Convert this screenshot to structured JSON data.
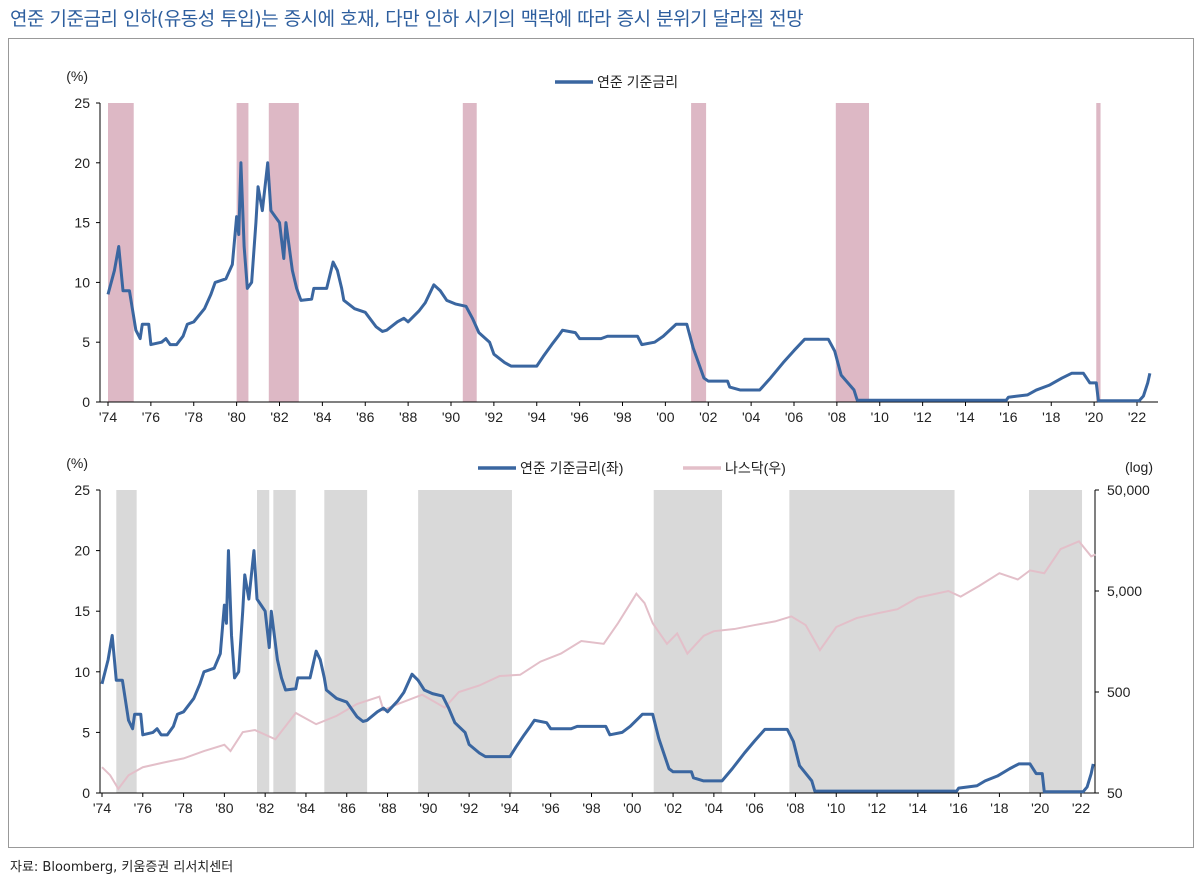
{
  "title": "연준 기준금리 인하(유동성 투입)는 증시에 호재, 다만 인하 시기의 맥락에 따라 증시 분위기 달라질 전망",
  "source": "자료: Bloomberg, 키움증권 리서치센터",
  "colors": {
    "rate": "#3a66a0",
    "nasdaq": "#e3bfc9",
    "recession": "#ddb8c5",
    "cut_period": "#d9d9d9"
  },
  "chart_data": [
    {
      "type": "line",
      "ylabel": "(%)",
      "ylim": [
        0,
        25
      ],
      "yticks": [
        "0",
        "5",
        "10",
        "15",
        "20",
        "25"
      ],
      "xticks": [
        "'74",
        "'76",
        "'78",
        "'80",
        "'82",
        "'84",
        "'86",
        "'88",
        "'90",
        "'92",
        "'94",
        "'96",
        "'98",
        "'00",
        "'02",
        "'04",
        "'06",
        "'08",
        "'10",
        "'12",
        "'14",
        "'16",
        "'18",
        "'20",
        "'22"
      ],
      "legend": "top-center",
      "series": [
        {
          "name": "연준 기준금리",
          "ref": "rate"
        }
      ],
      "shaded_periods": [
        [
          1974.0,
          1975.2
        ],
        [
          1980.0,
          1980.55
        ],
        [
          1981.5,
          1982.9
        ],
        [
          1990.55,
          1991.2
        ],
        [
          2001.2,
          2001.9
        ],
        [
          2007.95,
          2009.5
        ],
        [
          2020.1,
          2020.3
        ]
      ]
    },
    {
      "type": "line",
      "ylabel": "(%)",
      "ylabel_right": "(log)",
      "ylim": [
        0,
        25
      ],
      "ylim_right": [
        50,
        50000
      ],
      "yscale_right": "log",
      "yticks": [
        "0",
        "5",
        "10",
        "15",
        "20",
        "25"
      ],
      "yticks_right": [
        "50",
        "500",
        "5,000",
        "50,000"
      ],
      "xticks": [
        "'74",
        "'76",
        "'78",
        "'80",
        "'82",
        "'84",
        "'86",
        "'88",
        "'90",
        "'92",
        "'94",
        "'96",
        "'98",
        "'00",
        "'02",
        "'04",
        "'06",
        "'08",
        "'10",
        "'12",
        "'14",
        "'16",
        "'18",
        "'20",
        "'22"
      ],
      "legend": "top-center",
      "series": [
        {
          "name": "연준 기준금리(좌)",
          "ref": "rate"
        },
        {
          "name": "나스닥(우)",
          "ref": "nasdaq"
        }
      ],
      "shaded_periods": [
        [
          1974.7,
          1975.7
        ],
        [
          1981.6,
          1982.2
        ],
        [
          1982.4,
          1983.5
        ],
        [
          1984.9,
          1987.0
        ],
        [
          1989.5,
          1994.1
        ],
        [
          2001.05,
          2004.4
        ],
        [
          2007.7,
          2015.8
        ],
        [
          2019.45,
          2022.05
        ]
      ]
    }
  ],
  "rate": [
    [
      1974.0,
      9
    ],
    [
      1974.3,
      11
    ],
    [
      1974.5,
      13
    ],
    [
      1974.7,
      9.3
    ],
    [
      1975.0,
      9.3
    ],
    [
      1975.3,
      6
    ],
    [
      1975.5,
      5.3
    ],
    [
      1975.6,
      6.5
    ],
    [
      1975.9,
      6.5
    ],
    [
      1976.0,
      4.8
    ],
    [
      1976.5,
      5
    ],
    [
      1976.7,
      5.3
    ],
    [
      1976.9,
      4.8
    ],
    [
      1977.2,
      4.8
    ],
    [
      1977.5,
      5.5
    ],
    [
      1977.7,
      6.5
    ],
    [
      1978.0,
      6.7
    ],
    [
      1978.5,
      7.8
    ],
    [
      1978.8,
      9
    ],
    [
      1979.0,
      10
    ],
    [
      1979.5,
      10.3
    ],
    [
      1979.8,
      11.5
    ],
    [
      1980.0,
      15.5
    ],
    [
      1980.1,
      14
    ],
    [
      1980.2,
      20
    ],
    [
      1980.35,
      13
    ],
    [
      1980.5,
      9.5
    ],
    [
      1980.7,
      10
    ],
    [
      1980.9,
      15
    ],
    [
      1981.0,
      18
    ],
    [
      1981.2,
      16
    ],
    [
      1981.45,
      20
    ],
    [
      1981.6,
      16
    ],
    [
      1981.8,
      15.5
    ],
    [
      1982.0,
      15
    ],
    [
      1982.2,
      12
    ],
    [
      1982.3,
      15
    ],
    [
      1982.6,
      11
    ],
    [
      1982.8,
      9.5
    ],
    [
      1983.0,
      8.5
    ],
    [
      1983.5,
      8.6
    ],
    [
      1983.6,
      9.5
    ],
    [
      1984.2,
      9.5
    ],
    [
      1984.5,
      11.7
    ],
    [
      1984.7,
      11
    ],
    [
      1984.9,
      9.5
    ],
    [
      1985.0,
      8.5
    ],
    [
      1985.5,
      7.8
    ],
    [
      1986.0,
      7.5
    ],
    [
      1986.5,
      6.3
    ],
    [
      1986.8,
      5.9
    ],
    [
      1987.0,
      6
    ],
    [
      1987.5,
      6.7
    ],
    [
      1987.8,
      7
    ],
    [
      1988.0,
      6.7
    ],
    [
      1988.5,
      7.6
    ],
    [
      1988.8,
      8.3
    ],
    [
      1989.2,
      9.8
    ],
    [
      1989.5,
      9.3
    ],
    [
      1989.8,
      8.5
    ],
    [
      1990.2,
      8.2
    ],
    [
      1990.7,
      8
    ],
    [
      1991.0,
      7
    ],
    [
      1991.3,
      5.8
    ],
    [
      1991.8,
      5
    ],
    [
      1992.0,
      4
    ],
    [
      1992.5,
      3.3
    ],
    [
      1992.8,
      3
    ],
    [
      1994.0,
      3
    ],
    [
      1994.3,
      3.8
    ],
    [
      1994.7,
      4.8
    ],
    [
      1995.0,
      5.5
    ],
    [
      1995.2,
      6
    ],
    [
      1995.8,
      5.8
    ],
    [
      1996.0,
      5.3
    ],
    [
      1997.0,
      5.3
    ],
    [
      1997.3,
      5.5
    ],
    [
      1998.7,
      5.5
    ],
    [
      1998.9,
      4.8
    ],
    [
      1999.5,
      5
    ],
    [
      1999.9,
      5.5
    ],
    [
      2000.5,
      6.5
    ],
    [
      2001.0,
      6.5
    ],
    [
      2001.3,
      4.5
    ],
    [
      2001.8,
      2
    ],
    [
      2002.0,
      1.75
    ],
    [
      2002.9,
      1.75
    ],
    [
      2003.0,
      1.25
    ],
    [
      2003.5,
      1
    ],
    [
      2004.4,
      1
    ],
    [
      2004.9,
      2
    ],
    [
      2005.5,
      3.3
    ],
    [
      2006.0,
      4.3
    ],
    [
      2006.5,
      5.25
    ],
    [
      2007.6,
      5.25
    ],
    [
      2007.9,
      4.25
    ],
    [
      2008.2,
      2.25
    ],
    [
      2008.8,
      1
    ],
    [
      2008.95,
      0.15
    ],
    [
      2015.9,
      0.15
    ],
    [
      2016.0,
      0.4
    ],
    [
      2016.9,
      0.6
    ],
    [
      2017.3,
      1
    ],
    [
      2017.9,
      1.4
    ],
    [
      2018.5,
      2
    ],
    [
      2018.95,
      2.4
    ],
    [
      2019.5,
      2.4
    ],
    [
      2019.8,
      1.6
    ],
    [
      2020.1,
      1.6
    ],
    [
      2020.2,
      0.1
    ],
    [
      2022.1,
      0.1
    ],
    [
      2022.3,
      0.5
    ],
    [
      2022.5,
      1.6
    ],
    [
      2022.6,
      2.4
    ]
  ],
  "nasdaq": [
    [
      1974.0,
      90
    ],
    [
      1974.4,
      75
    ],
    [
      1974.8,
      55
    ],
    [
      1975.3,
      75
    ],
    [
      1976.0,
      90
    ],
    [
      1977.0,
      100
    ],
    [
      1978.0,
      110
    ],
    [
      1979.0,
      130
    ],
    [
      1980.0,
      150
    ],
    [
      1980.3,
      130
    ],
    [
      1980.9,
      200
    ],
    [
      1981.5,
      210
    ],
    [
      1982.5,
      170
    ],
    [
      1983.5,
      310
    ],
    [
      1984.5,
      240
    ],
    [
      1985.5,
      290
    ],
    [
      1986.5,
      380
    ],
    [
      1987.6,
      450
    ],
    [
      1987.8,
      330
    ],
    [
      1988.5,
      380
    ],
    [
      1989.7,
      470
    ],
    [
      1990.8,
      350
    ],
    [
      1991.5,
      500
    ],
    [
      1992.5,
      580
    ],
    [
      1993.5,
      720
    ],
    [
      1994.5,
      740
    ],
    [
      1995.5,
      1000
    ],
    [
      1996.5,
      1200
    ],
    [
      1997.5,
      1600
    ],
    [
      1998.6,
      1500
    ],
    [
      1999.3,
      2400
    ],
    [
      2000.2,
      4700
    ],
    [
      2000.6,
      3800
    ],
    [
      2001.0,
      2400
    ],
    [
      2001.7,
      1500
    ],
    [
      2002.2,
      1900
    ],
    [
      2002.7,
      1200
    ],
    [
      2003.5,
      1800
    ],
    [
      2004.0,
      2000
    ],
    [
      2005.0,
      2100
    ],
    [
      2006.0,
      2300
    ],
    [
      2007.0,
      2500
    ],
    [
      2007.8,
      2800
    ],
    [
      2008.5,
      2300
    ],
    [
      2009.2,
      1300
    ],
    [
      2010.0,
      2200
    ],
    [
      2011.0,
      2700
    ],
    [
      2012.0,
      3000
    ],
    [
      2013.0,
      3300
    ],
    [
      2014.0,
      4300
    ],
    [
      2015.5,
      5000
    ],
    [
      2016.1,
      4400
    ],
    [
      2017.0,
      5600
    ],
    [
      2018.0,
      7500
    ],
    [
      2018.9,
      6500
    ],
    [
      2019.5,
      8000
    ],
    [
      2020.2,
      7500
    ],
    [
      2021.0,
      13000
    ],
    [
      2021.9,
      15500
    ],
    [
      2022.5,
      11000
    ],
    [
      2022.7,
      11500
    ]
  ]
}
